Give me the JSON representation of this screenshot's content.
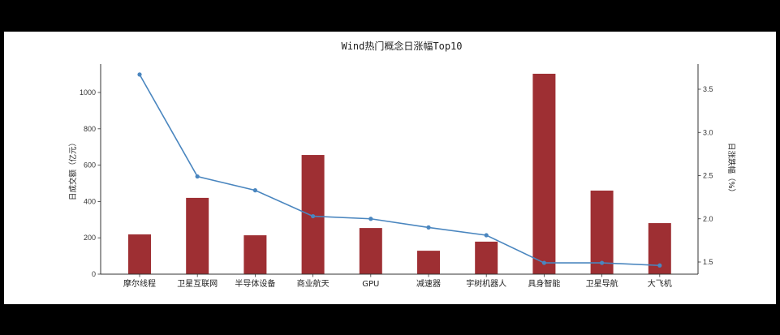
{
  "chart_data": {
    "type": "bar+line",
    "title": "Wind热门概念日涨幅Top10",
    "xlabel": "",
    "ylabel_left": "日成交额（亿元）",
    "ylabel_right": "日涨跌幅（%）",
    "categories": [
      "摩尔线程",
      "卫星互联网",
      "半导体设备",
      "商业航天",
      "GPU",
      "减速器",
      "宇树机器人",
      "具身智能",
      "卫星导航",
      "大飞机"
    ],
    "series": [
      {
        "name": "日成交额（亿元）",
        "type": "bar",
        "axis": "left",
        "color": "#9e2f33",
        "values": [
          219,
          420,
          214,
          656,
          254,
          129,
          179,
          1103,
          460,
          281
        ]
      },
      {
        "name": "日涨跌幅（%）",
        "type": "line",
        "axis": "right",
        "color": "#4a86bf",
        "values": [
          3.67,
          2.49,
          2.33,
          2.03,
          2.0,
          1.9,
          1.81,
          1.49,
          1.49,
          1.46
        ]
      }
    ],
    "left_axis": {
      "ylim": [
        0,
        1150
      ],
      "ticks": [
        "0",
        "200",
        "400",
        "600",
        "800",
        "1000"
      ]
    },
    "right_axis": {
      "ylim": [
        1.36,
        3.78
      ],
      "ticks": [
        "1.5",
        "2.0",
        "2.5",
        "3.0",
        "3.5"
      ]
    },
    "grid": false,
    "legend": "none"
  }
}
